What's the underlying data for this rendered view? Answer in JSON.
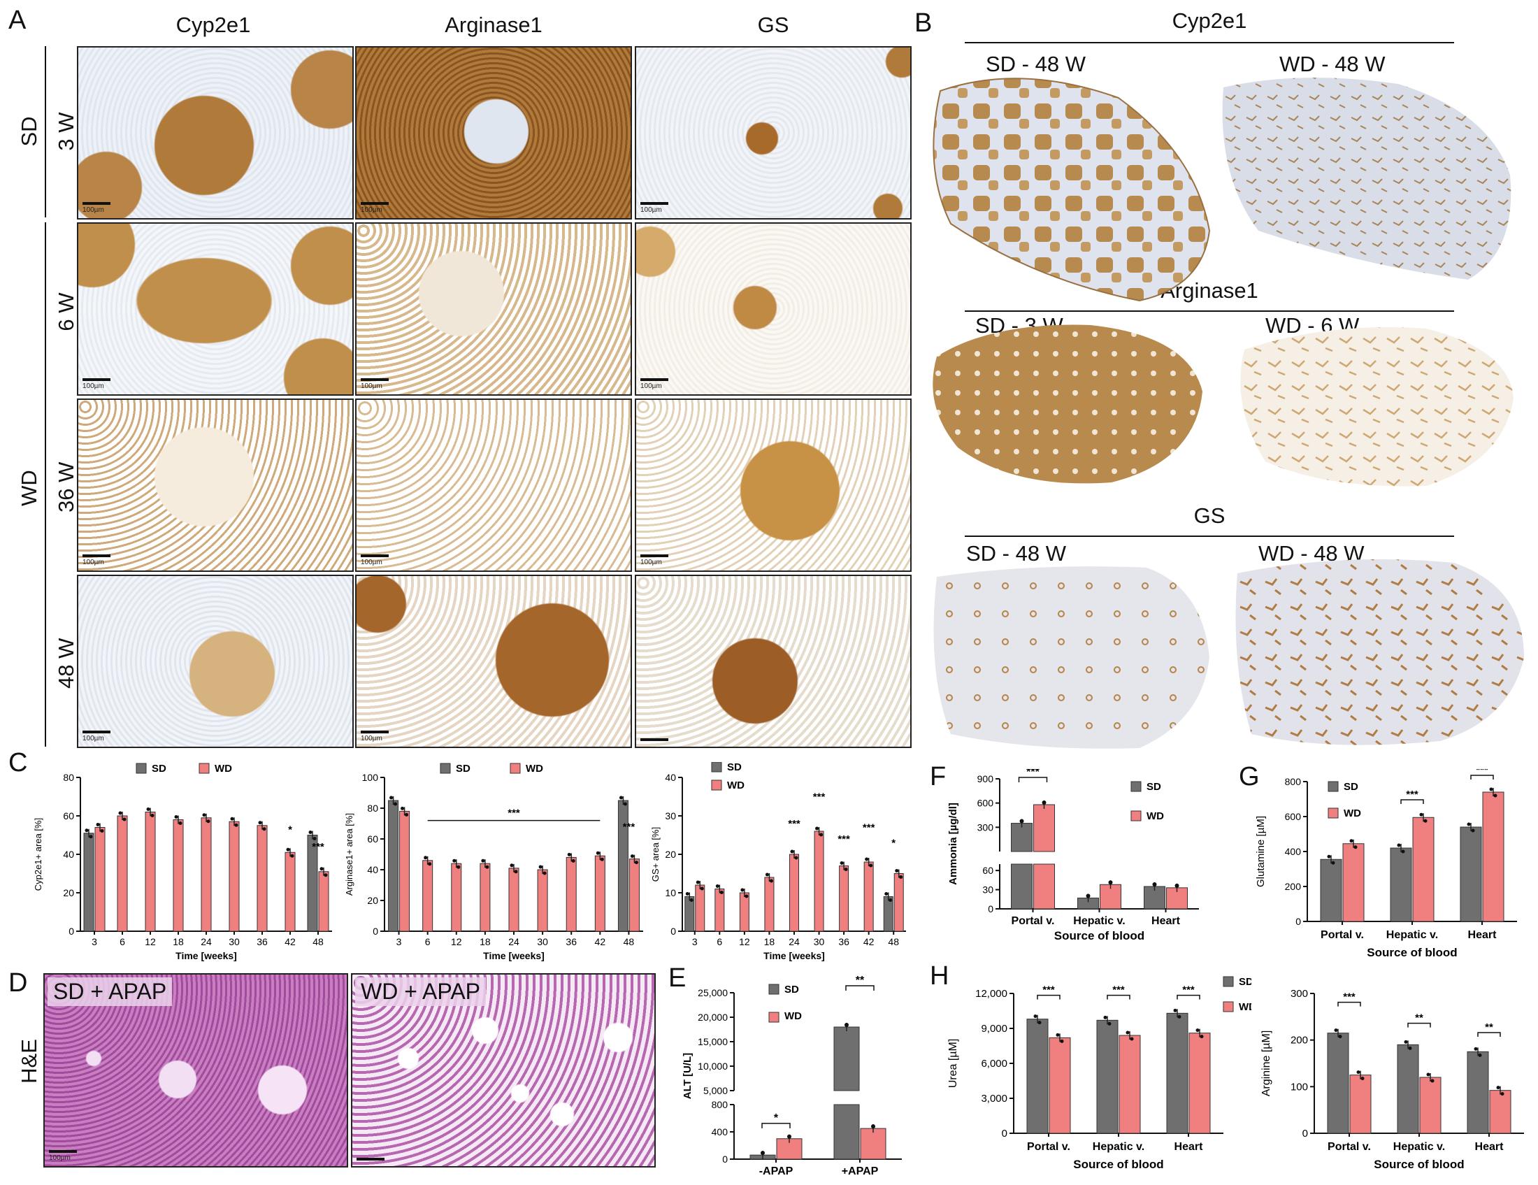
{
  "panel_letters": {
    "A": "A",
    "B": "B",
    "C": "C",
    "D": "D",
    "E": "E",
    "F": "F",
    "G": "G",
    "H": "H"
  },
  "panel_a": {
    "columns": [
      "Cyp2e1",
      "Arginase1",
      "GS"
    ],
    "group_sd": "SD",
    "group_wd": "WD",
    "rows": [
      "3 W",
      "6 W",
      "36 W",
      "48 W"
    ],
    "scale_label": "100µm"
  },
  "panel_b": {
    "sections": [
      {
        "title": "Cyp2e1",
        "left": "SD - 48 W",
        "right": "WD - 48 W"
      },
      {
        "title": "Arginase1",
        "left": "SD - 3 W",
        "right": "WD - 6 W"
      },
      {
        "title": "GS",
        "left": "SD - 48 W",
        "right": "WD - 48 W"
      }
    ]
  },
  "panel_d": {
    "row_label": "H&E",
    "left_overlay": "SD + APAP",
    "right_overlay": "WD + APAP",
    "scale_label": "100µm"
  },
  "colors": {
    "SD": "#6f6f6f",
    "WD": "#f08080",
    "stain_brown": "#b07a3a",
    "tissue_bg": "#e8eef4",
    "he_pink": "#b05aa8"
  },
  "chart_data": [
    {
      "id": "C1",
      "type": "bar",
      "legend": [
        "SD",
        "WD"
      ],
      "ylabel": "Cyp2e1+ area [%]",
      "xlabel": "Time [weeks]",
      "categories": [
        "3",
        "6",
        "12",
        "18",
        "24",
        "30",
        "36",
        "42",
        "48"
      ],
      "ylim": [
        0,
        80
      ],
      "yticks": [
        "0",
        "20",
        "40",
        "60",
        "80"
      ],
      "series": [
        {
          "name": "SD",
          "values": [
            51,
            null,
            null,
            null,
            null,
            null,
            null,
            null,
            50
          ]
        },
        {
          "name": "WD",
          "values": [
            54,
            60,
            62,
            58,
            59,
            57,
            55,
            41,
            31
          ]
        }
      ],
      "annotations": [
        {
          "cat": "42",
          "text": "*"
        },
        {
          "cat": "48",
          "text": "***"
        }
      ]
    },
    {
      "id": "C2",
      "type": "bar",
      "legend": [
        "SD",
        "WD"
      ],
      "ylabel": "Arginase1+ area [%]",
      "xlabel": "Time [weeks]",
      "categories": [
        "3",
        "6",
        "12",
        "18",
        "24",
        "30",
        "36",
        "42",
        "48"
      ],
      "ylim": [
        0,
        100
      ],
      "yticks": [
        "0",
        "20",
        "40",
        "60",
        "80",
        "100"
      ],
      "series": [
        {
          "name": "SD",
          "values": [
            85,
            null,
            null,
            null,
            null,
            null,
            null,
            null,
            85
          ]
        },
        {
          "name": "WD",
          "values": [
            78,
            46,
            44,
            44,
            41,
            40,
            48,
            49,
            47
          ]
        }
      ],
      "annotations": [
        {
          "cat": "6-42",
          "text": "***"
        },
        {
          "cat": "48",
          "text": "***"
        }
      ]
    },
    {
      "id": "C3",
      "type": "bar",
      "legend": [
        "SD",
        "WD"
      ],
      "ylabel": "GS+ area [%]",
      "xlabel": "Time [weeks]",
      "categories": [
        "3",
        "6",
        "12",
        "18",
        "24",
        "30",
        "36",
        "42",
        "48"
      ],
      "ylim": [
        0,
        40
      ],
      "yticks": [
        "0",
        "10",
        "20",
        "30",
        "40"
      ],
      "series": [
        {
          "name": "SD",
          "values": [
            9,
            null,
            null,
            null,
            null,
            null,
            null,
            null,
            9
          ]
        },
        {
          "name": "WD",
          "values": [
            12,
            11,
            10,
            14,
            20,
            26,
            17,
            18,
            15
          ]
        }
      ],
      "annotations": [
        {
          "cat": "24",
          "text": "***"
        },
        {
          "cat": "30",
          "text": "***"
        },
        {
          "cat": "36",
          "text": "***"
        },
        {
          "cat": "42",
          "text": "***"
        },
        {
          "cat": "48",
          "text": "*"
        }
      ]
    },
    {
      "id": "E",
      "type": "bar",
      "legend": [
        "SD",
        "WD"
      ],
      "ylabel": "ALT [U/L]",
      "categories": [
        "-APAP",
        "+APAP"
      ],
      "yticks_upper": [
        "5,000",
        "10,000",
        "15,000",
        "20,000",
        "25,000"
      ],
      "yticks_lower": [
        "0",
        "400",
        "800"
      ],
      "series": [
        {
          "name": "SD",
          "values": [
            60,
            18000
          ]
        },
        {
          "name": "WD",
          "values": [
            300,
            450
          ]
        }
      ],
      "annotations": [
        {
          "cat": "-APAP",
          "text": "*"
        },
        {
          "cat": "+APAP",
          "text": "**"
        }
      ]
    },
    {
      "id": "F",
      "type": "bar",
      "legend": [
        "SD",
        "WD"
      ],
      "ylabel": "Ammonia [µg/dl]",
      "xlabel": "Source of blood",
      "categories": [
        "Portal v.",
        "Hepatic v.",
        "Heart"
      ],
      "yticks_upper": [
        "300",
        "600",
        "900"
      ],
      "yticks_lower": [
        "0",
        "30",
        "60"
      ],
      "series": [
        {
          "name": "SD",
          "values": [
            350,
            17,
            35
          ]
        },
        {
          "name": "WD",
          "values": [
            580,
            38,
            33
          ]
        }
      ],
      "annotations": [
        {
          "cat": "Portal v.",
          "text": "***"
        }
      ]
    },
    {
      "id": "G",
      "type": "bar",
      "legend": [
        "SD",
        "WD"
      ],
      "ylabel": "Glutamine [µM]",
      "xlabel": "Source of blood",
      "categories": [
        "Portal v.",
        "Hepatic v.",
        "Heart"
      ],
      "ylim": [
        0,
        800
      ],
      "yticks": [
        "0",
        "200",
        "400",
        "600",
        "800"
      ],
      "series": [
        {
          "name": "SD",
          "values": [
            355,
            420,
            540
          ]
        },
        {
          "name": "WD",
          "values": [
            445,
            595,
            740
          ]
        }
      ],
      "annotations": [
        {
          "cat": "Hepatic v.",
          "text": "***"
        },
        {
          "cat": "Heart",
          "text": "***"
        }
      ]
    },
    {
      "id": "H1",
      "type": "bar",
      "legend": [
        "SD",
        "WD"
      ],
      "ylabel": "Urea [µM]",
      "xlabel": "Source of blood",
      "categories": [
        "Portal v.",
        "Hepatic v.",
        "Heart"
      ],
      "ylim": [
        0,
        12000
      ],
      "yticks": [
        "0",
        "3,000",
        "6,000",
        "9,000",
        "12,000"
      ],
      "series": [
        {
          "name": "SD",
          "values": [
            9800,
            9700,
            10300
          ]
        },
        {
          "name": "WD",
          "values": [
            8200,
            8400,
            8600
          ]
        }
      ],
      "annotations": [
        {
          "cat": "Portal v.",
          "text": "***"
        },
        {
          "cat": "Hepatic v.",
          "text": "***"
        },
        {
          "cat": "Heart",
          "text": "***"
        }
      ]
    },
    {
      "id": "H2",
      "type": "bar",
      "legend": [
        "SD",
        "WD"
      ],
      "ylabel": "Arginine [µM]",
      "xlabel": "Source of blood",
      "categories": [
        "Portal v.",
        "Hepatic v.",
        "Heart"
      ],
      "ylim": [
        0,
        300
      ],
      "yticks": [
        "0",
        "100",
        "200",
        "300"
      ],
      "series": [
        {
          "name": "SD",
          "values": [
            215,
            190,
            175
          ]
        },
        {
          "name": "WD",
          "values": [
            125,
            120,
            92
          ]
        }
      ],
      "annotations": [
        {
          "cat": "Portal v.",
          "text": "***"
        },
        {
          "cat": "Hepatic v.",
          "text": "**"
        },
        {
          "cat": "Heart",
          "text": "**"
        }
      ]
    }
  ]
}
